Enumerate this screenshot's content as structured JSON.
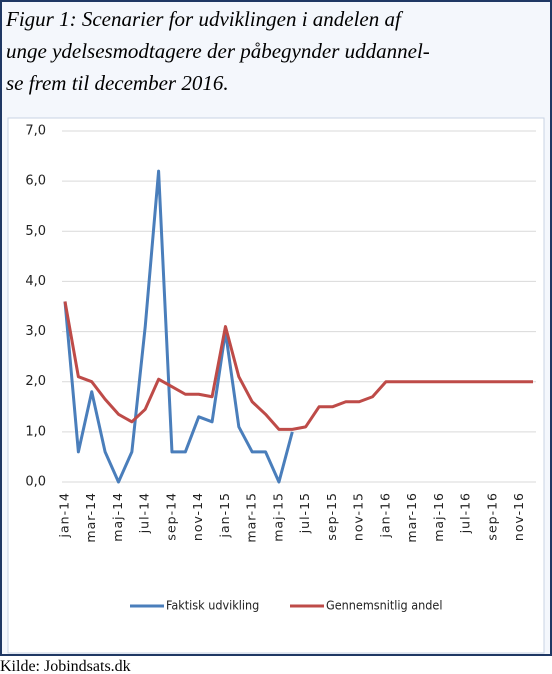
{
  "chart_data": {
    "type": "line",
    "title_lines": [
      "Figur 1: Scenarier for udviklingen i andelen af",
      "unge ydelsesmodtagere der påbegynder uddannel-",
      "se frem til december 2016."
    ],
    "source": "Kilde: Jobindsats.dk",
    "categories": [
      "jan-14",
      null,
      "mar-14",
      null,
      "maj-14",
      null,
      "jul-14",
      null,
      "sep-14",
      null,
      "nov-14",
      null,
      "jan-15",
      null,
      "mar-15",
      null,
      "maj-15",
      null,
      "jul-15",
      null,
      "sep-15",
      null,
      "nov-15",
      null,
      "jan-16",
      null,
      "mar-16",
      null,
      "maj-16",
      null,
      "jul-16",
      null,
      "sep-16",
      null,
      "nov-16",
      null
    ],
    "series": [
      {
        "name": "Faktisk udvikling",
        "color": "#4a7ebb",
        "values": [
          3.6,
          0.6,
          1.8,
          0.6,
          0.0,
          0.6,
          3.1,
          6.2,
          0.6,
          0.6,
          1.3,
          1.2,
          3.0,
          1.1,
          0.6,
          0.6,
          0.0,
          1.0,
          null,
          null,
          null,
          null,
          null,
          null,
          null,
          null,
          null,
          null,
          null,
          null,
          null,
          null,
          null,
          null,
          null,
          null
        ]
      },
      {
        "name": "Gennemsnitlig andel",
        "color": "#be4b48",
        "values": [
          3.6,
          2.1,
          2.0,
          1.65,
          1.35,
          1.2,
          1.45,
          2.05,
          1.9,
          1.75,
          1.75,
          1.7,
          3.1,
          2.1,
          1.6,
          1.35,
          1.05,
          1.05,
          1.1,
          1.5,
          1.5,
          1.6,
          1.6,
          1.7,
          2.0,
          2.0,
          2.0,
          2.0,
          2.0,
          2.0,
          2.0,
          2.0,
          2.0,
          2.0,
          2.0,
          2.0
        ]
      }
    ],
    "ylim": [
      0,
      7
    ],
    "yticks": [
      {
        "value": 0,
        "label": "0,0"
      },
      {
        "value": 1,
        "label": "1,0"
      },
      {
        "value": 2,
        "label": "2,0"
      },
      {
        "value": 3,
        "label": "3,0"
      },
      {
        "value": 4,
        "label": "4,0"
      },
      {
        "value": 5,
        "label": "5,0"
      },
      {
        "value": 6,
        "label": "6,0"
      },
      {
        "value": 7,
        "label": "7,0"
      }
    ],
    "grid": true
  }
}
